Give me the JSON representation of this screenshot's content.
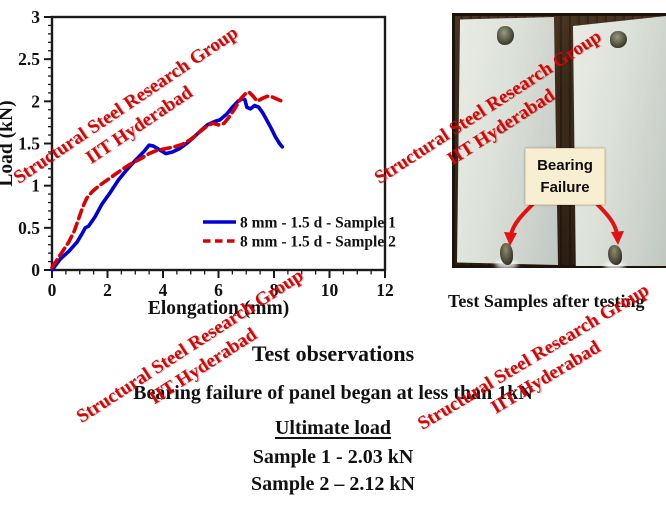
{
  "watermark": {
    "line1": "Structural Steel Research Group",
    "line2": "IIT Hyderabad",
    "color": "#d40707"
  },
  "chart_data": {
    "type": "line",
    "title": "",
    "xlabel": "Elongation (mm)",
    "ylabel": "Load (kN)",
    "xlim": [
      0,
      12
    ],
    "ylim": [
      0,
      3
    ],
    "x_ticks": [
      0,
      2,
      4,
      6,
      8,
      10,
      12
    ],
    "y_ticks": [
      0,
      0.5,
      1,
      1.5,
      2,
      2.5,
      3
    ],
    "x_minor_step": 0.5,
    "y_minor_step": 0.1,
    "grid": false,
    "legend_position": "lower-right-inside",
    "frame_color": "#1a1a1a",
    "series": [
      {
        "name": "8 mm - 1.5 d - Sample 1",
        "color": "#0000d8",
        "style": "solid",
        "points": [
          [
            0,
            0
          ],
          [
            0.3,
            0.13
          ],
          [
            0.6,
            0.22
          ],
          [
            0.9,
            0.33
          ],
          [
            1.1,
            0.44
          ],
          [
            1.2,
            0.5
          ],
          [
            1.32,
            0.52
          ],
          [
            1.55,
            0.63
          ],
          [
            1.8,
            0.78
          ],
          [
            2.1,
            0.92
          ],
          [
            2.4,
            1.07
          ],
          [
            2.7,
            1.19
          ],
          [
            3.0,
            1.3
          ],
          [
            3.3,
            1.4
          ],
          [
            3.5,
            1.48
          ],
          [
            3.65,
            1.47
          ],
          [
            3.9,
            1.42
          ],
          [
            4.1,
            1.38
          ],
          [
            4.35,
            1.4
          ],
          [
            4.6,
            1.44
          ],
          [
            4.85,
            1.5
          ],
          [
            5.1,
            1.57
          ],
          [
            5.35,
            1.65
          ],
          [
            5.6,
            1.72
          ],
          [
            5.85,
            1.76
          ],
          [
            6.05,
            1.78
          ],
          [
            6.3,
            1.85
          ],
          [
            6.5,
            1.93
          ],
          [
            6.7,
            2.0
          ],
          [
            6.85,
            2.03
          ],
          [
            6.95,
            2.02
          ],
          [
            7.02,
            1.93
          ],
          [
            7.15,
            1.91
          ],
          [
            7.3,
            1.95
          ],
          [
            7.45,
            1.93
          ],
          [
            7.6,
            1.86
          ],
          [
            7.75,
            1.77
          ],
          [
            7.9,
            1.68
          ],
          [
            8.05,
            1.58
          ],
          [
            8.2,
            1.5
          ],
          [
            8.3,
            1.46
          ]
        ]
      },
      {
        "name": "8 mm - 1.5 d - Sample 2",
        "color": "#dd0000",
        "style": "dashed",
        "points": [
          [
            0,
            0.03
          ],
          [
            0.2,
            0.13
          ],
          [
            0.4,
            0.23
          ],
          [
            0.6,
            0.33
          ],
          [
            0.8,
            0.46
          ],
          [
            0.95,
            0.6
          ],
          [
            1.1,
            0.74
          ],
          [
            1.25,
            0.85
          ],
          [
            1.45,
            0.93
          ],
          [
            1.7,
            1.0
          ],
          [
            2.0,
            1.07
          ],
          [
            2.3,
            1.14
          ],
          [
            2.6,
            1.21
          ],
          [
            2.9,
            1.27
          ],
          [
            3.2,
            1.32
          ],
          [
            3.5,
            1.38
          ],
          [
            3.8,
            1.42
          ],
          [
            4.1,
            1.44
          ],
          [
            4.4,
            1.46
          ],
          [
            4.7,
            1.49
          ],
          [
            5.0,
            1.55
          ],
          [
            5.3,
            1.63
          ],
          [
            5.6,
            1.71
          ],
          [
            5.8,
            1.74
          ],
          [
            6.0,
            1.72
          ],
          [
            6.2,
            1.74
          ],
          [
            6.4,
            1.82
          ],
          [
            6.6,
            1.92
          ],
          [
            6.8,
            2.03
          ],
          [
            7.0,
            2.1
          ],
          [
            7.1,
            2.11
          ],
          [
            7.25,
            2.06
          ],
          [
            7.4,
            2.0
          ],
          [
            7.55,
            2.03
          ],
          [
            7.75,
            2.06
          ],
          [
            7.95,
            2.05
          ],
          [
            8.15,
            2.02
          ],
          [
            8.3,
            2.0
          ]
        ]
      }
    ]
  },
  "photo": {
    "label_line1": "Bearing",
    "label_line2": "Failure",
    "caption": "Test Samples after testing",
    "label_bg": "#f8efd2",
    "arrow_color": "#e31212"
  },
  "observations": {
    "title": "Test observations",
    "bearing_line": "Bearing failure of panel began at less than 1kN",
    "ultimate_heading": "Ultimate load",
    "sample1": "Sample 1 - 2.03 kN",
    "sample2": "Sample 2 – 2.12 kN"
  }
}
